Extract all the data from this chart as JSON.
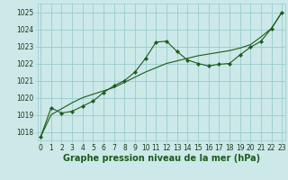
{
  "xlabel": "Graphe pression niveau de la mer (hPa)",
  "bg_color": "#cce8e8",
  "grid_color": "#99cccc",
  "line_color": "#1a5c1a",
  "ylim": [
    1017.5,
    1025.5
  ],
  "xlim": [
    -0.3,
    23.3
  ],
  "yticks": [
    1018,
    1019,
    1020,
    1021,
    1022,
    1023,
    1024,
    1025
  ],
  "xticks": [
    0,
    1,
    2,
    3,
    4,
    5,
    6,
    7,
    8,
    9,
    10,
    11,
    12,
    13,
    14,
    15,
    16,
    17,
    18,
    19,
    20,
    21,
    22,
    23
  ],
  "jagged_x": [
    0,
    1,
    2,
    3,
    4,
    5,
    6,
    7,
    8,
    9,
    10,
    11,
    12,
    13,
    14,
    15,
    16,
    17,
    18,
    19,
    20,
    21,
    22,
    23
  ],
  "jagged_y": [
    1017.7,
    1019.4,
    1019.1,
    1019.2,
    1019.5,
    1019.8,
    1020.3,
    1020.7,
    1021.0,
    1021.5,
    1022.3,
    1023.25,
    1023.3,
    1022.7,
    1022.2,
    1022.0,
    1021.85,
    1021.95,
    1022.0,
    1022.5,
    1022.95,
    1023.3,
    1024.05,
    1025.0
  ],
  "smooth_x": [
    0,
    1,
    2,
    3,
    4,
    5,
    6,
    7,
    8,
    9,
    10,
    11,
    12,
    13,
    14,
    15,
    16,
    17,
    18,
    19,
    20,
    21,
    22,
    23
  ],
  "smooth_y": [
    1017.7,
    1019.0,
    1019.35,
    1019.7,
    1020.0,
    1020.2,
    1020.4,
    1020.6,
    1020.9,
    1021.2,
    1021.5,
    1021.75,
    1022.0,
    1022.15,
    1022.3,
    1022.45,
    1022.55,
    1022.65,
    1022.75,
    1022.9,
    1023.1,
    1023.55,
    1024.05,
    1025.0
  ],
  "xlabel_fontsize": 7,
  "tick_fontsize": 5.5,
  "figsize": [
    3.2,
    2.0
  ],
  "dpi": 100
}
